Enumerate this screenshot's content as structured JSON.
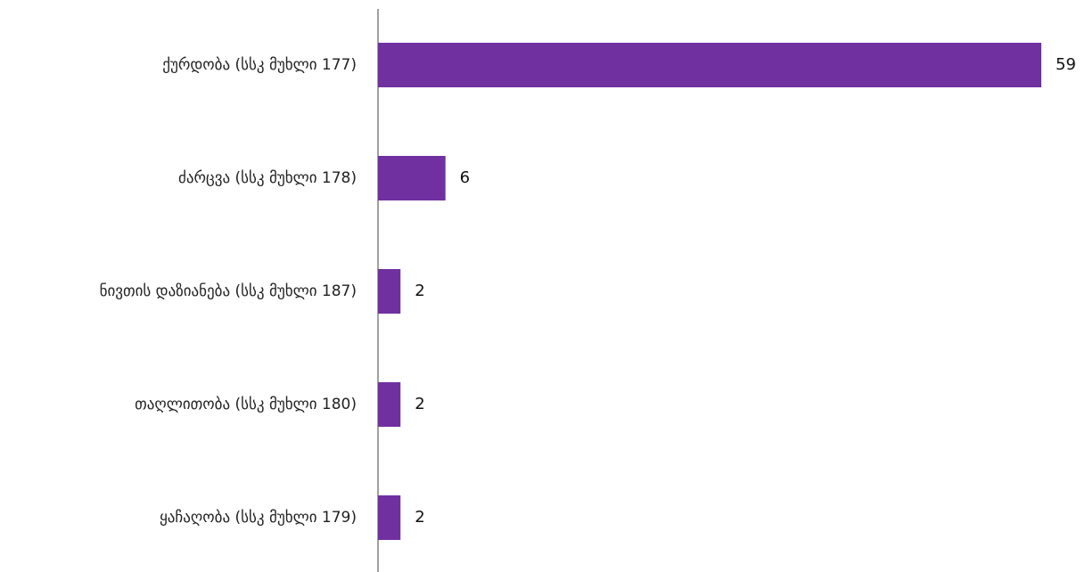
{
  "chart_data": {
    "type": "bar",
    "orientation": "horizontal",
    "categories": [
      "ქურდობა (სსკ მუხლი 177)",
      "ძარცვა (სსკ მუხლი 178)",
      "ნივთის დაზიანება (სსკ მუხლი 187)",
      "თაღლითობა (სსკ მუხლი 180)",
      "ყაჩაღობა (სსკ მუხლი 179)"
    ],
    "values": [
      59,
      6,
      2,
      2,
      2
    ],
    "title": "",
    "xlabel": "",
    "ylabel": "",
    "xlim": [
      0,
      59
    ],
    "grid": false,
    "legend": "none",
    "colors": {
      "bar": "#7030a0",
      "axis": "#808080",
      "text": "#222222"
    }
  }
}
